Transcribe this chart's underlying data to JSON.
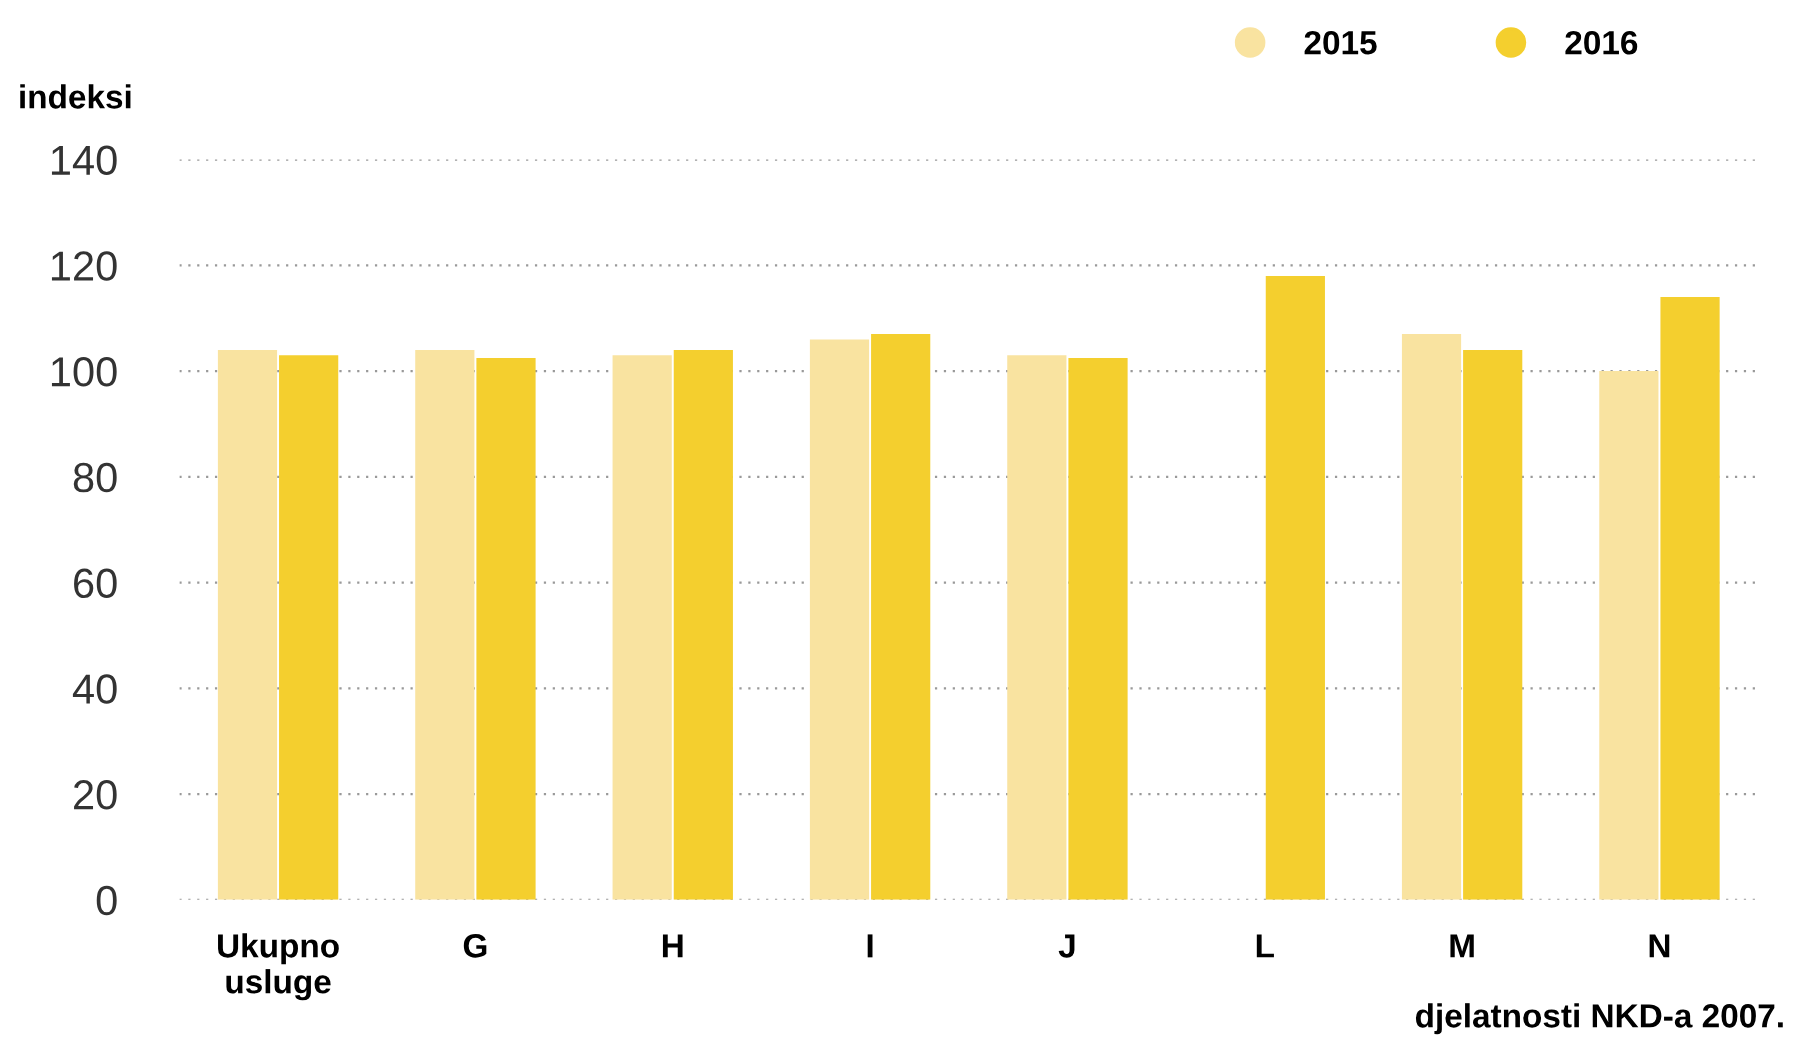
{
  "chart_data": {
    "type": "bar",
    "categories": [
      "Ukupno\nusluge",
      "G",
      "H",
      "I",
      "J",
      "L",
      "M",
      "N"
    ],
    "series": [
      {
        "name": "2015",
        "color": "#f9e3a0",
        "values": [
          104,
          104,
          103,
          106,
          103,
          null,
          107,
          100
        ]
      },
      {
        "name": "2016",
        "color": "#f4cf2e",
        "values": [
          103,
          102.5,
          104,
          107,
          102.5,
          118,
          104,
          114
        ]
      }
    ],
    "ylabel": "indeksi",
    "xlabel": "djelatnosti NKD-a 2007.",
    "ylim": [
      0,
      140
    ],
    "yticks": [
      0,
      20,
      40,
      60,
      80,
      100,
      120,
      140
    ],
    "grid": "y",
    "legend": "top right"
  }
}
